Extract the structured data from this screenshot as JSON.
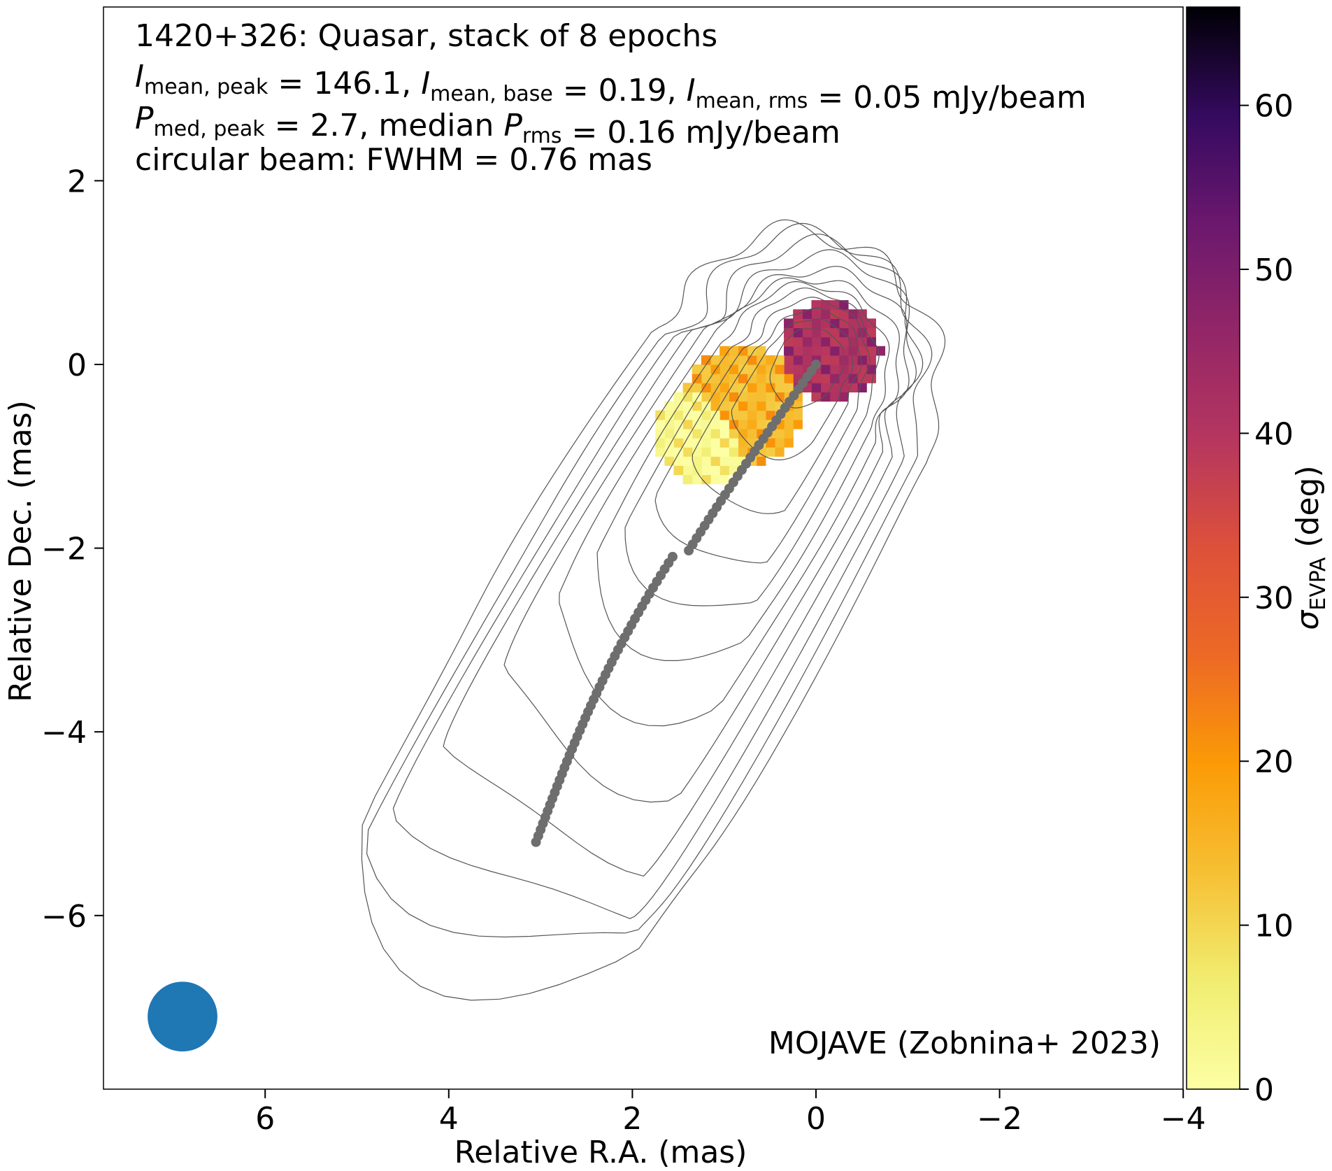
{
  "chart_data": {
    "type": "heatmap",
    "annotation_lines": [
      [
        {
          "t": "1420+326: Quasar, stack of 8 epochs"
        }
      ],
      [
        {
          "t": "I",
          "i": 1
        },
        {
          "t": "mean, peak",
          "sub": 1
        },
        {
          "t": " = 146.1, "
        },
        {
          "t": "I",
          "i": 1
        },
        {
          "t": "mean, base",
          "sub": 1
        },
        {
          "t": " = 0.19, "
        },
        {
          "t": "I",
          "i": 1
        },
        {
          "t": "mean, rms",
          "sub": 1
        },
        {
          "t": " = 0.05 mJy/beam"
        }
      ],
      [
        {
          "t": "P",
          "i": 1
        },
        {
          "t": "med, peak",
          "sub": 1
        },
        {
          "t": " = 2.7, median "
        },
        {
          "t": "P",
          "i": 1
        },
        {
          "t": "rms",
          "sub": 1
        },
        {
          "t": " = 0.16 mJy/beam"
        }
      ],
      [
        {
          "t": "circular beam: FWHM = 0.76 mas"
        }
      ]
    ],
    "credit": "MOJAVE (Zobnina+ 2023)",
    "xlabel": "Relative R.A. (mas)",
    "ylabel": "Relative Dec. (mas)",
    "x_ticks": [
      "6",
      "4",
      "2",
      "0",
      "−2",
      "−4"
    ],
    "y_ticks": [
      "2",
      "0",
      "−2",
      "−4",
      "−6"
    ],
    "xlim": [
      7.8,
      -4
    ],
    "ylim": [
      -7.9,
      3.9
    ],
    "colorbar": {
      "label_main": "σ",
      "label_sub": "EVPA",
      "label_unit": " (deg)",
      "ticks": [
        "0",
        "10",
        "20",
        "30",
        "40",
        "50",
        "60"
      ],
      "range": [
        0,
        66
      ],
      "colormap": "inferno_r"
    },
    "beam": {
      "ra": 6.9,
      "dec": -7.1,
      "fwhm_mas": 0.76,
      "color": "#1f77b4"
    },
    "ridge_line": {
      "start": [
        3.05,
        -5.2
      ],
      "end": [
        0.0,
        0.0
      ],
      "color": "#6e6e6e"
    },
    "contours": {
      "color": "#555555",
      "levels": 12
    },
    "evpa_uncertainty_blobs": [
      {
        "ra": -0.15,
        "dec": 0.15,
        "radius_mas": 0.55,
        "sigma_deg": 42
      },
      {
        "ra": 0.8,
        "dec": -0.45,
        "radius_mas": 0.65,
        "sigma_deg": 15
      },
      {
        "ra": 1.2,
        "dec": -0.75,
        "radius_mas": 0.55,
        "sigma_deg": 3
      }
    ]
  }
}
